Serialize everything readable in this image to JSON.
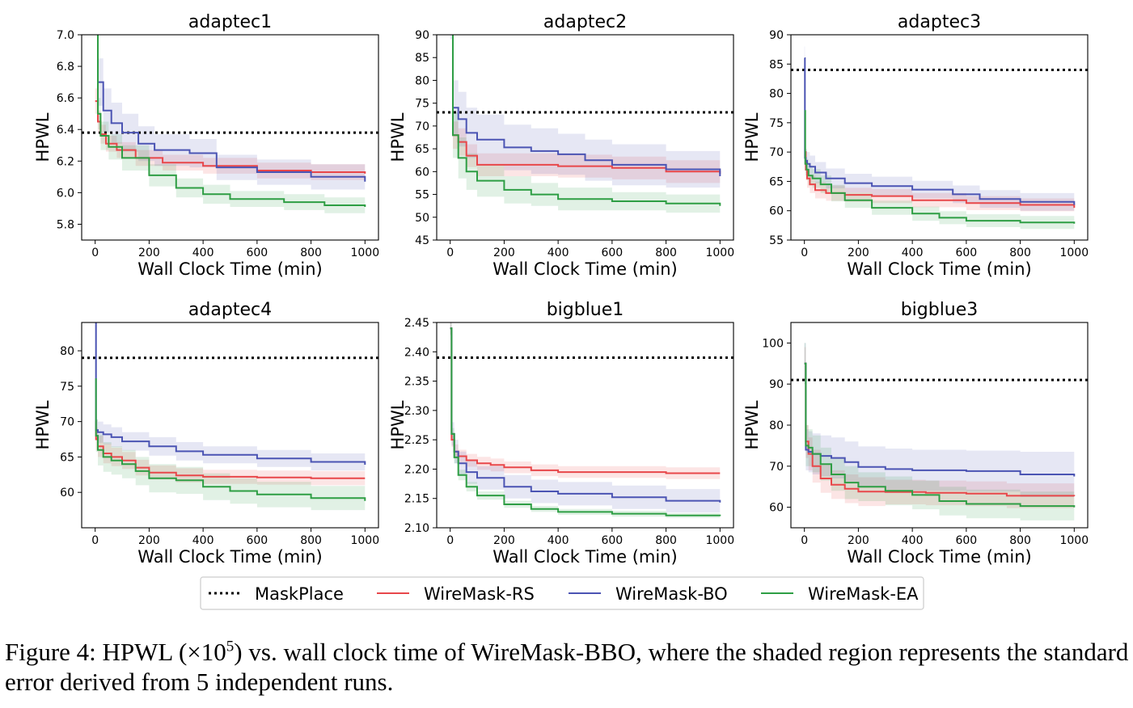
{
  "colors": {
    "MaskPlace": "#000000",
    "WireMask-RS": "#e8474a",
    "WireMask-BO": "#4b54b3",
    "WireMask-EA": "#2e9e44"
  },
  "legend": [
    "MaskPlace",
    "WireMask-RS",
    "WireMask-BO",
    "WireMask-EA"
  ],
  "caption": {
    "prefix": "Figure 4: HPWL ",
    "math_open": "(×10",
    "math_exp": "5",
    "math_close": ")",
    "rest": " vs. wall clock time of WireMask-BBO, where the shaded region represents the standard error derived from 5 independent runs."
  },
  "chart_data": [
    {
      "type": "line",
      "title": "adaptec1",
      "xlabel": "Wall Clock Time (min)",
      "ylabel": "HPWL",
      "xlim": [
        -50,
        1050
      ],
      "ylim": [
        5.7,
        7.0
      ],
      "xticks": [
        0,
        200,
        400,
        600,
        800,
        1000
      ],
      "yticks": [
        5.8,
        6.0,
        6.2,
        6.4,
        6.6,
        6.8,
        7.0
      ],
      "ytick_labels": [
        "5.8",
        "6.0",
        "6.2",
        "6.4",
        "6.6",
        "6.8",
        "7.0"
      ],
      "maskplace": 6.38,
      "series": [
        {
          "name": "WireMask-RS",
          "x": [
            0,
            10,
            20,
            40,
            80,
            150,
            250,
            400,
            600,
            800,
            1000
          ],
          "y": [
            6.58,
            6.45,
            6.37,
            6.31,
            6.27,
            6.22,
            6.19,
            6.17,
            6.14,
            6.13,
            6.12
          ],
          "err": [
            0.08,
            0.07,
            0.06,
            0.05,
            0.05,
            0.05,
            0.05,
            0.05,
            0.05,
            0.05,
            0.05
          ]
        },
        {
          "name": "WireMask-BO",
          "x": [
            0,
            10,
            30,
            60,
            100,
            160,
            220,
            350,
            450,
            600,
            800,
            1000
          ],
          "y": [
            7.3,
            6.7,
            6.52,
            6.44,
            6.38,
            6.31,
            6.27,
            6.25,
            6.16,
            6.13,
            6.1,
            6.07
          ],
          "err": [
            0.15,
            0.15,
            0.14,
            0.13,
            0.12,
            0.11,
            0.1,
            0.09,
            0.08,
            0.08,
            0.08,
            0.08
          ]
        },
        {
          "name": "WireMask-EA",
          "x": [
            0,
            10,
            20,
            50,
            100,
            200,
            300,
            400,
            500,
            700,
            850,
            1000
          ],
          "y": [
            7.3,
            6.5,
            6.36,
            6.29,
            6.22,
            6.11,
            6.03,
            5.99,
            5.96,
            5.94,
            5.92,
            5.91
          ],
          "err": [
            0.12,
            0.1,
            0.09,
            0.08,
            0.08,
            0.07,
            0.06,
            0.06,
            0.05,
            0.05,
            0.05,
            0.05
          ]
        }
      ]
    },
    {
      "type": "line",
      "title": "adaptec2",
      "xlabel": "Wall Clock Time (min)",
      "ylabel": "HPWL",
      "xlim": [
        -50,
        1050
      ],
      "ylim": [
        45,
        90
      ],
      "xticks": [
        0,
        200,
        400,
        600,
        800,
        1000
      ],
      "yticks": [
        45,
        50,
        55,
        60,
        65,
        70,
        75,
        80,
        85,
        90
      ],
      "ytick_labels": [
        "45",
        "50",
        "55",
        "60",
        "65",
        "70",
        "75",
        "80",
        "85",
        "90"
      ],
      "maskplace": 73,
      "series": [
        {
          "name": "WireMask-RS",
          "x": [
            0,
            10,
            30,
            60,
            100,
            200,
            400,
            600,
            800,
            1000
          ],
          "y": [
            95,
            68,
            66.5,
            63.5,
            61.5,
            61.5,
            61.2,
            60.8,
            60,
            59.5
          ],
          "err": [
            3,
            3,
            3,
            2.5,
            2.5,
            2.5,
            2.5,
            2.5,
            2.5,
            2.5
          ]
        },
        {
          "name": "WireMask-BO",
          "x": [
            0,
            10,
            30,
            60,
            100,
            200,
            300,
            400,
            500,
            600,
            800,
            1000
          ],
          "y": [
            95,
            74,
            71.5,
            68.5,
            67,
            65.3,
            64.5,
            63.8,
            62.5,
            61.5,
            60.5,
            59
          ],
          "err": [
            6,
            6,
            6,
            5.5,
            5.5,
            5,
            5,
            4.5,
            4.5,
            4.5,
            4,
            4
          ]
        },
        {
          "name": "WireMask-EA",
          "x": [
            0,
            10,
            30,
            60,
            100,
            200,
            300,
            400,
            600,
            800,
            1000
          ],
          "y": [
            95,
            68,
            63,
            60,
            58,
            56,
            55,
            54,
            53.5,
            53,
            52.5
          ],
          "err": [
            5,
            5,
            4.5,
            4,
            3.5,
            3,
            2.5,
            2.5,
            2,
            2,
            2
          ]
        }
      ]
    },
    {
      "type": "line",
      "title": "adaptec3",
      "xlabel": "Wall Clock Time (min)",
      "ylabel": "HPWL",
      "xlim": [
        -50,
        1050
      ],
      "ylim": [
        55,
        90
      ],
      "xticks": [
        0,
        200,
        400,
        600,
        800,
        1000
      ],
      "yticks": [
        55,
        60,
        65,
        70,
        75,
        80,
        85,
        90
      ],
      "ytick_labels": [
        "55",
        "60",
        "65",
        "70",
        "75",
        "80",
        "85",
        "90"
      ],
      "maskplace": 84,
      "series": [
        {
          "name": "WireMask-RS",
          "x": [
            0,
            5,
            10,
            20,
            40,
            80,
            150,
            250,
            400,
            600,
            800,
            1000
          ],
          "y": [
            70,
            67,
            65.5,
            64.5,
            63.5,
            63,
            62.7,
            62.5,
            61.8,
            61.3,
            61,
            60.5
          ],
          "err": [
            2,
            1.8,
            1.6,
            1.5,
            1.4,
            1.3,
            1.2,
            1.2,
            1.2,
            1.2,
            1.1,
            1.1
          ]
        },
        {
          "name": "WireMask-BO",
          "x": [
            0,
            2,
            5,
            10,
            20,
            40,
            80,
            150,
            250,
            400,
            550,
            650,
            800,
            1000
          ],
          "y": [
            86,
            69,
            68.5,
            68,
            67.5,
            66.5,
            65.5,
            64.7,
            64.2,
            63.6,
            62.8,
            62,
            61.5,
            61
          ],
          "err": [
            2,
            2,
            2,
            2,
            1.9,
            1.8,
            1.7,
            1.6,
            1.6,
            1.5,
            1.5,
            1.5,
            1.5,
            1.5
          ]
        },
        {
          "name": "WireMask-EA",
          "x": [
            0,
            3,
            8,
            15,
            30,
            60,
            100,
            150,
            250,
            400,
            500,
            600,
            800,
            1000
          ],
          "y": [
            77,
            68,
            67,
            66,
            65.5,
            64.5,
            63,
            61.8,
            60.5,
            59.5,
            58.8,
            58.3,
            58,
            57.8
          ],
          "err": [
            2,
            2,
            1.8,
            1.7,
            1.6,
            1.5,
            1.4,
            1.3,
            1.2,
            1.2,
            1.1,
            1.1,
            1.1,
            1.1
          ]
        }
      ]
    },
    {
      "type": "line",
      "title": "adaptec4",
      "xlabel": "Wall Clock Time (min)",
      "ylabel": "HPWL",
      "xlim": [
        -50,
        1050
      ],
      "ylim": [
        55,
        84
      ],
      "xticks": [
        0,
        200,
        400,
        600,
        800,
        1000
      ],
      "yticks": [
        60,
        65,
        70,
        75,
        80
      ],
      "ytick_labels": [
        "60",
        "65",
        "70",
        "75",
        "80"
      ],
      "maskplace": 79,
      "series": [
        {
          "name": "WireMask-RS",
          "x": [
            0,
            3,
            10,
            30,
            60,
            100,
            150,
            200,
            300,
            400,
            600,
            800,
            1000
          ],
          "y": [
            70,
            67.5,
            66.5,
            65.5,
            65,
            64.5,
            63.5,
            62.8,
            62.4,
            62.2,
            62.1,
            62,
            62
          ],
          "err": [
            1.8,
            1.6,
            1.5,
            1.4,
            1.3,
            1.2,
            1.1,
            1.0,
            1.0,
            1.0,
            1.0,
            1.0,
            1.0
          ]
        },
        {
          "name": "WireMask-BO",
          "x": [
            0,
            3,
            10,
            30,
            60,
            100,
            200,
            300,
            400,
            600,
            800,
            1000
          ],
          "y": [
            85,
            68.8,
            68.5,
            68.2,
            67.8,
            67.2,
            66.5,
            65.8,
            65.3,
            64.8,
            64.3,
            63.9
          ],
          "err": [
            2,
            1.5,
            1.5,
            1.4,
            1.4,
            1.3,
            1.3,
            1.3,
            1.2,
            1.2,
            1.2,
            1.2
          ]
        },
        {
          "name": "WireMask-EA",
          "x": [
            0,
            3,
            10,
            30,
            60,
            100,
            150,
            200,
            300,
            400,
            500,
            600,
            800,
            1000
          ],
          "y": [
            76,
            68,
            66,
            65,
            64.5,
            64,
            63,
            62,
            61.7,
            60.8,
            60.2,
            59.7,
            59.2,
            58.8
          ],
          "err": [
            2.5,
            2.3,
            2.2,
            2.1,
            2.0,
            2.0,
            2.0,
            2.0,
            1.9,
            1.9,
            1.8,
            1.8,
            1.7,
            1.7
          ]
        }
      ]
    },
    {
      "type": "line",
      "title": "bigblue1",
      "xlabel": "Wall Clock Time (min)",
      "ylabel": "HPWL",
      "xlim": [
        -50,
        1050
      ],
      "ylim": [
        2.1,
        2.45
      ],
      "xticks": [
        0,
        200,
        400,
        600,
        800,
        1000
      ],
      "yticks": [
        2.1,
        2.15,
        2.2,
        2.25,
        2.3,
        2.35,
        2.4,
        2.45
      ],
      "ytick_labels": [
        "2.10",
        "2.15",
        "2.20",
        "2.25",
        "2.30",
        "2.35",
        "2.40",
        "2.45"
      ],
      "maskplace": 2.39,
      "series": [
        {
          "name": "WireMask-RS",
          "x": [
            0,
            5,
            15,
            30,
            60,
            100,
            150,
            200,
            300,
            400,
            600,
            800,
            1000
          ],
          "y": [
            2.44,
            2.25,
            2.23,
            2.222,
            2.215,
            2.21,
            2.207,
            2.203,
            2.198,
            2.195,
            2.195,
            2.193,
            2.193
          ],
          "err": [
            0.012,
            0.012,
            0.012,
            0.011,
            0.011,
            0.011,
            0.011,
            0.01,
            0.01,
            0.01,
            0.01,
            0.01,
            0.01
          ]
        },
        {
          "name": "WireMask-BO",
          "x": [
            0,
            5,
            15,
            30,
            60,
            100,
            200,
            300,
            400,
            600,
            800,
            1000
          ],
          "y": [
            2.44,
            2.26,
            2.23,
            2.21,
            2.195,
            2.185,
            2.17,
            2.162,
            2.158,
            2.152,
            2.146,
            2.143
          ],
          "err": [
            0.02,
            0.02,
            0.02,
            0.02,
            0.02,
            0.02,
            0.02,
            0.02,
            0.02,
            0.02,
            0.02,
            0.02
          ]
        },
        {
          "name": "WireMask-EA",
          "x": [
            0,
            5,
            15,
            30,
            60,
            100,
            200,
            300,
            400,
            600,
            800,
            1000
          ],
          "y": [
            2.44,
            2.26,
            2.22,
            2.19,
            2.17,
            2.155,
            2.14,
            2.132,
            2.127,
            2.124,
            2.121,
            2.12
          ],
          "err": [
            0.01,
            0.01,
            0.01,
            0.009,
            0.008,
            0.007,
            0.006,
            0.005,
            0.005,
            0.005,
            0.004,
            0.004
          ]
        }
      ]
    },
    {
      "type": "line",
      "title": "bigblue3",
      "xlabel": "Wall Clock Time (min)",
      "ylabel": "HPWL",
      "xlim": [
        -50,
        1050
      ],
      "ylim": [
        55,
        105
      ],
      "xticks": [
        0,
        200,
        400,
        600,
        800,
        1000
      ],
      "yticks": [
        60,
        70,
        80,
        90,
        100
      ],
      "ytick_labels": [
        "60",
        "70",
        "80",
        "90",
        "100"
      ],
      "maskplace": 91,
      "series": [
        {
          "name": "WireMask-RS",
          "x": [
            0,
            5,
            15,
            30,
            60,
            100,
            150,
            200,
            300,
            450,
            600,
            750,
            1000
          ],
          "y": [
            95,
            76,
            73,
            70,
            67,
            65.5,
            64.5,
            63.8,
            63.7,
            63.5,
            63.3,
            62.8,
            62.7
          ],
          "err": [
            4,
            4,
            4,
            4,
            3.5,
            3.5,
            3.5,
            3.5,
            3.0,
            3.0,
            3.0,
            3.0,
            3.0
          ]
        },
        {
          "name": "WireMask-BO",
          "x": [
            0,
            5,
            15,
            30,
            60,
            100,
            150,
            200,
            300,
            400,
            600,
            800,
            1000
          ],
          "y": [
            95,
            74,
            73.5,
            73,
            72.5,
            72,
            71,
            69.8,
            69.3,
            69,
            68.8,
            68,
            67.5
          ],
          "err": [
            5,
            5,
            5,
            5,
            5,
            5,
            5,
            5,
            5,
            5,
            5,
            5.5,
            6
          ]
        },
        {
          "name": "WireMask-EA",
          "x": [
            0,
            5,
            15,
            30,
            60,
            100,
            150,
            200,
            300,
            400,
            500,
            600,
            800,
            1000
          ],
          "y": [
            95,
            75,
            74.5,
            73,
            70.5,
            68,
            66,
            65,
            64,
            63,
            61.5,
            60.8,
            60.3,
            60
          ],
          "err": [
            5,
            5,
            4.5,
            4.5,
            4,
            4,
            4,
            3.5,
            3.5,
            3.5,
            3.5,
            3.5,
            3.5,
            3.5
          ]
        }
      ]
    }
  ]
}
